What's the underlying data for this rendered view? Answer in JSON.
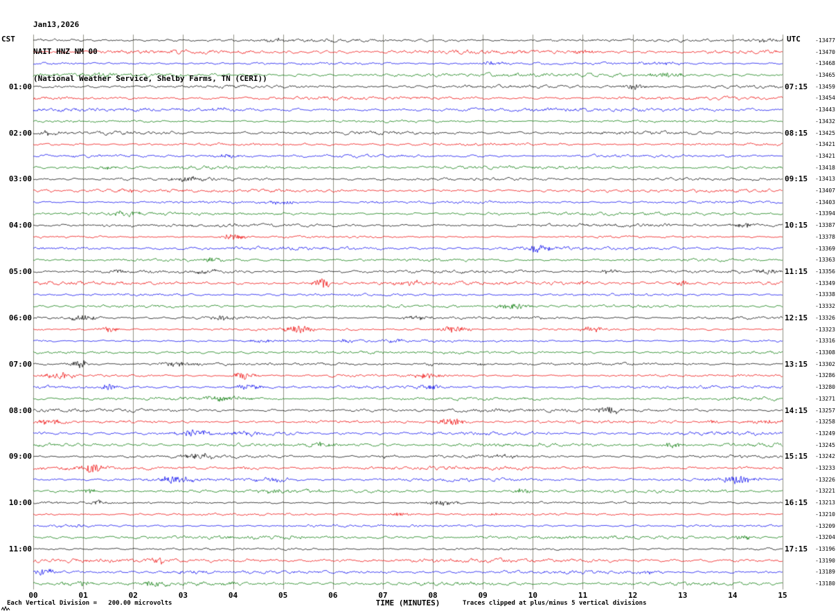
{
  "header": {
    "date": "Jan13,2026",
    "station": "NAIT HNZ NM 00",
    "location": "(National Weather Service, Shelby Farms, TN (CERI))"
  },
  "axes": {
    "left_timezone": "CST",
    "right_timezone": "UTC",
    "x_axis_title": "TIME (MINUTES)"
  },
  "footer": {
    "left_note": "Each Vertical Division =   200.00 microvolts",
    "right_note": "Traces clipped at plus/minus 5 vertical divisions"
  },
  "colors": {
    "background": "#ffffff",
    "grid": "#8f8f82",
    "black_trace": "#000000",
    "red_trace": "#ee0000",
    "blue_trace": "#0000ee",
    "green_trace": "#007700"
  },
  "chart_data": {
    "type": "line",
    "subtype": "helicorder_seismogram",
    "title": "NAIT HNZ NM 00  Jan13,2026  (National Weather Service, Shelby Farms, TN (CERI))",
    "rows": 48,
    "minutes_per_row": 15,
    "x_range_minutes": [
      0,
      15
    ],
    "x_tick_labels": [
      "00",
      "01",
      "02",
      "03",
      "04",
      "05",
      "06",
      "07",
      "08",
      "09",
      "10",
      "11",
      "12",
      "13",
      "14",
      "15"
    ],
    "xlabel": "TIME (MINUTES)",
    "grid": "vertical-minute-lines",
    "row_color_cycle": [
      "#000000",
      "#ee0000",
      "#0000ee",
      "#007700"
    ],
    "left_hour_labels": [
      "01:00",
      "02:00",
      "03:00",
      "04:00",
      "05:00",
      "06:00",
      "07:00",
      "08:00",
      "09:00",
      "10:00",
      "11:00"
    ],
    "right_hour_labels": [
      "07:15",
      "08:15",
      "09:15",
      "10:15",
      "11:15",
      "12:15",
      "13:15",
      "14:15",
      "15:15",
      "16:15",
      "17:15"
    ],
    "hour_label_row_step": 4,
    "row_right_labels": [
      "-13477",
      "-13470",
      "-13468",
      "-13465",
      "-13459",
      "-13454",
      "-13443",
      "-13432",
      "-13425",
      "-13421",
      "-13421",
      "-13418",
      "-13413",
      "-13407",
      "-13403",
      "-13394",
      "-13387",
      "-13378",
      "-13369",
      "-13363",
      "-13356",
      "-13349",
      "-13338",
      "-13332",
      "-13326",
      "-13323",
      "-13316",
      "-13308",
      "-13302",
      "-13286",
      "-13280",
      "-13271",
      "-13257",
      "-13258",
      "-13249",
      "-13245",
      "-13242",
      "-13233",
      "-13226",
      "-13221",
      "-13213",
      "-13210",
      "-13209",
      "-13204",
      "-13196",
      "-13190",
      "-13189",
      "-13180"
    ],
    "microvolts_per_division": 200.0,
    "clip_divisions": 5,
    "events": [
      [
        4,
        12.0,
        3
      ],
      [
        8,
        0.3,
        2.5
      ],
      [
        17,
        4.0,
        4
      ],
      [
        18,
        10.1,
        5
      ],
      [
        19,
        3.6,
        3.5
      ],
      [
        20,
        11.5,
        3
      ],
      [
        20,
        14.7,
        3
      ],
      [
        21,
        5.8,
        6
      ],
      [
        21,
        13.0,
        3
      ],
      [
        23,
        9.6,
        4
      ],
      [
        24,
        1.0,
        3.5
      ],
      [
        24,
        3.8,
        3
      ],
      [
        25,
        1.5,
        4
      ],
      [
        25,
        5.3,
        4.5
      ],
      [
        25,
        8.4,
        4
      ],
      [
        25,
        11.2,
        3.5
      ],
      [
        26,
        6.3,
        3
      ],
      [
        28,
        0.9,
        7
      ],
      [
        28,
        2.9,
        3.5
      ],
      [
        29,
        0.5,
        4
      ],
      [
        29,
        4.2,
        4
      ],
      [
        29,
        7.9,
        3.5
      ],
      [
        30,
        1.5,
        4
      ],
      [
        30,
        4.3,
        4
      ],
      [
        30,
        7.9,
        3
      ],
      [
        32,
        11.5,
        4
      ],
      [
        33,
        0.3,
        3.5
      ],
      [
        33,
        8.4,
        4.5
      ],
      [
        34,
        3.2,
        4
      ],
      [
        35,
        5.8,
        3.5
      ],
      [
        35,
        12.8,
        3.5
      ],
      [
        36,
        3.3,
        3.5
      ],
      [
        37,
        1.2,
        6
      ],
      [
        38,
        2.8,
        4.5
      ],
      [
        38,
        14.2,
        3.5
      ],
      [
        39,
        1.1,
        3
      ],
      [
        39,
        9.8,
        3
      ],
      [
        40,
        1.3,
        4
      ],
      [
        40,
        8.2,
        3
      ],
      [
        43,
        14.2,
        4.5
      ],
      [
        45,
        2.5,
        5.5
      ],
      [
        46,
        0.2,
        4
      ],
      [
        47,
        1.0,
        3.5
      ],
      [
        47,
        2.4,
        3.5
      ]
    ],
    "noise_seed": 20260113
  }
}
